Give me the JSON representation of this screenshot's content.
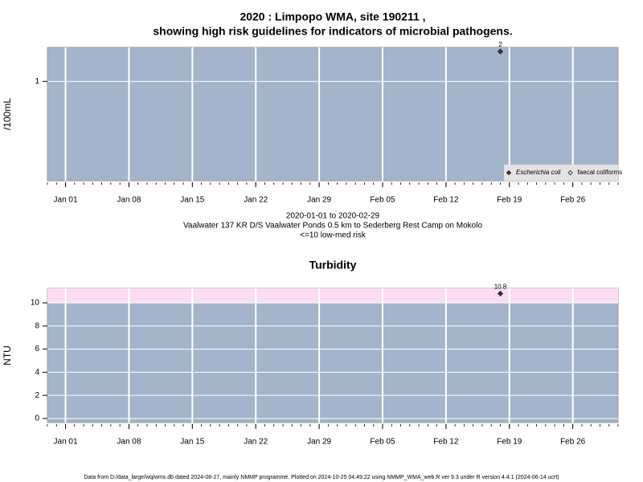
{
  "chart_data": [
    {
      "type": "scatter",
      "title": [
        "2020 : Limpopo WMA, site 190211 ,",
        "showing high risk guidelines for indicators of microbial pathogens."
      ],
      "subtitle": [
        "2020-01-01 to 2020-02-29",
        "Vaalwater 137 KR D/S Vaalwater Ponds 0.5 km to Sederberg Rest Camp on Mokolo",
        "<=10 low-med risk"
      ],
      "ylabel": "/100mL",
      "log_scale": true,
      "ylim": [
        0.1,
        2.2
      ],
      "yticks": [
        1
      ],
      "xlim": [
        "2019-12-30",
        "2020-03-02"
      ],
      "xticks": [
        {
          "value": "2020-01-01",
          "label": "Jan 01"
        },
        {
          "value": "2020-01-08",
          "label": "Jan 08"
        },
        {
          "value": "2020-01-15",
          "label": "Jan 15"
        },
        {
          "value": "2020-01-22",
          "label": "Jan 22"
        },
        {
          "value": "2020-01-29",
          "label": "Jan 29"
        },
        {
          "value": "2020-02-05",
          "label": "Feb 05"
        },
        {
          "value": "2020-02-12",
          "label": "Feb 12"
        },
        {
          "value": "2020-02-19",
          "label": "Feb 19"
        },
        {
          "value": "2020-02-26",
          "label": "Feb 26"
        }
      ],
      "grid": true,
      "background": "#a3b4cb",
      "legend": "bottom-right",
      "series": [
        {
          "name": "Escherichia coli",
          "color": "#333333",
          "marker": "filled",
          "x": [
            "2020-02-18"
          ],
          "values": [
            2
          ]
        },
        {
          "name": "faecal coliforms",
          "color": "#333333",
          "marker": "open",
          "x": [],
          "values": []
        }
      ]
    },
    {
      "type": "scatter",
      "title": [
        "Turbidity"
      ],
      "ylabel": "NTU",
      "log_scale": false,
      "ylim": [
        -0.35,
        11.25
      ],
      "yticks": [
        0,
        2,
        4,
        6,
        8,
        10
      ],
      "xlim": [
        "2019-12-30",
        "2020-03-02"
      ],
      "xticks": [
        {
          "value": "2020-01-01",
          "label": "Jan 01"
        },
        {
          "value": "2020-01-08",
          "label": "Jan 08"
        },
        {
          "value": "2020-01-15",
          "label": "Jan 15"
        },
        {
          "value": "2020-01-22",
          "label": "Jan 22"
        },
        {
          "value": "2020-01-29",
          "label": "Jan 29"
        },
        {
          "value": "2020-02-05",
          "label": "Feb 05"
        },
        {
          "value": "2020-02-12",
          "label": "Feb 12"
        },
        {
          "value": "2020-02-19",
          "label": "Feb 19"
        },
        {
          "value": "2020-02-26",
          "label": "Feb 26"
        }
      ],
      "grid": true,
      "background": "#a3b4cb",
      "guideline": 10,
      "guideline_color": "#fbdcf4",
      "series": [
        {
          "color": "#333333",
          "marker": "filled",
          "x": [
            "2020-02-18"
          ],
          "values": [
            10.8
          ]
        }
      ]
    }
  ],
  "footer": "Data from D:/data_large/wq/wms.db dated 2024-08-27, mainly NMMP programme. Plotted on 2024-10-25 04:49:22 using NMMP_WMA_web.R ver 9.3 under R version 4.4.1 (2024-06-14 ucrt)"
}
